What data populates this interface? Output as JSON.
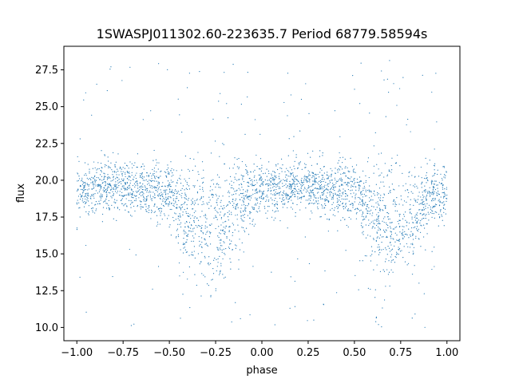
{
  "chart_data": {
    "type": "scatter",
    "title": "1SWASPJ011302.60-223635.7 Period 68779.58594s",
    "xlabel": "phase",
    "ylabel": "flux",
    "xlim": [
      -1.07,
      1.07
    ],
    "ylim": [
      9.1,
      29.1
    ],
    "xticks": [
      -1.0,
      -0.75,
      -0.5,
      -0.25,
      0.0,
      0.25,
      0.5,
      0.75,
      1.0
    ],
    "xtick_labels": [
      "−1.00",
      "−0.75",
      "−0.50",
      "−0.25",
      "0.00",
      "0.25",
      "0.50",
      "0.75",
      "1.00"
    ],
    "yticks": [
      10.0,
      12.5,
      15.0,
      17.5,
      20.0,
      22.5,
      25.0,
      27.5
    ],
    "ytick_labels": [
      "10.0",
      "12.5",
      "15.0",
      "17.5",
      "20.0",
      "22.5",
      "25.0",
      "27.5"
    ],
    "grid": false,
    "marker_color": "#1f77b4",
    "series": [
      {
        "profile": {
          "description_phase": [
            -1.0,
            -0.9,
            -0.8,
            -0.7,
            -0.6,
            -0.5,
            -0.45,
            -0.4,
            -0.35,
            -0.3,
            -0.25,
            -0.2,
            -0.15,
            -0.1,
            -0.05,
            0.0,
            0.1,
            0.2,
            0.3,
            0.4,
            0.5,
            0.55,
            0.6,
            0.65,
            0.7,
            0.75,
            0.8,
            0.85,
            0.9,
            0.95,
            1.0
          ],
          "median_flux": [
            19.3,
            19.4,
            19.5,
            19.5,
            19.4,
            19.0,
            18.6,
            17.8,
            17.2,
            17.0,
            17.0,
            17.3,
            18.2,
            18.9,
            19.2,
            19.4,
            19.5,
            19.6,
            19.5,
            19.3,
            19.0,
            18.6,
            17.8,
            17.2,
            17.0,
            17.0,
            17.3,
            18.2,
            18.9,
            19.2,
            19.3
          ]
        }
      }
    ]
  }
}
